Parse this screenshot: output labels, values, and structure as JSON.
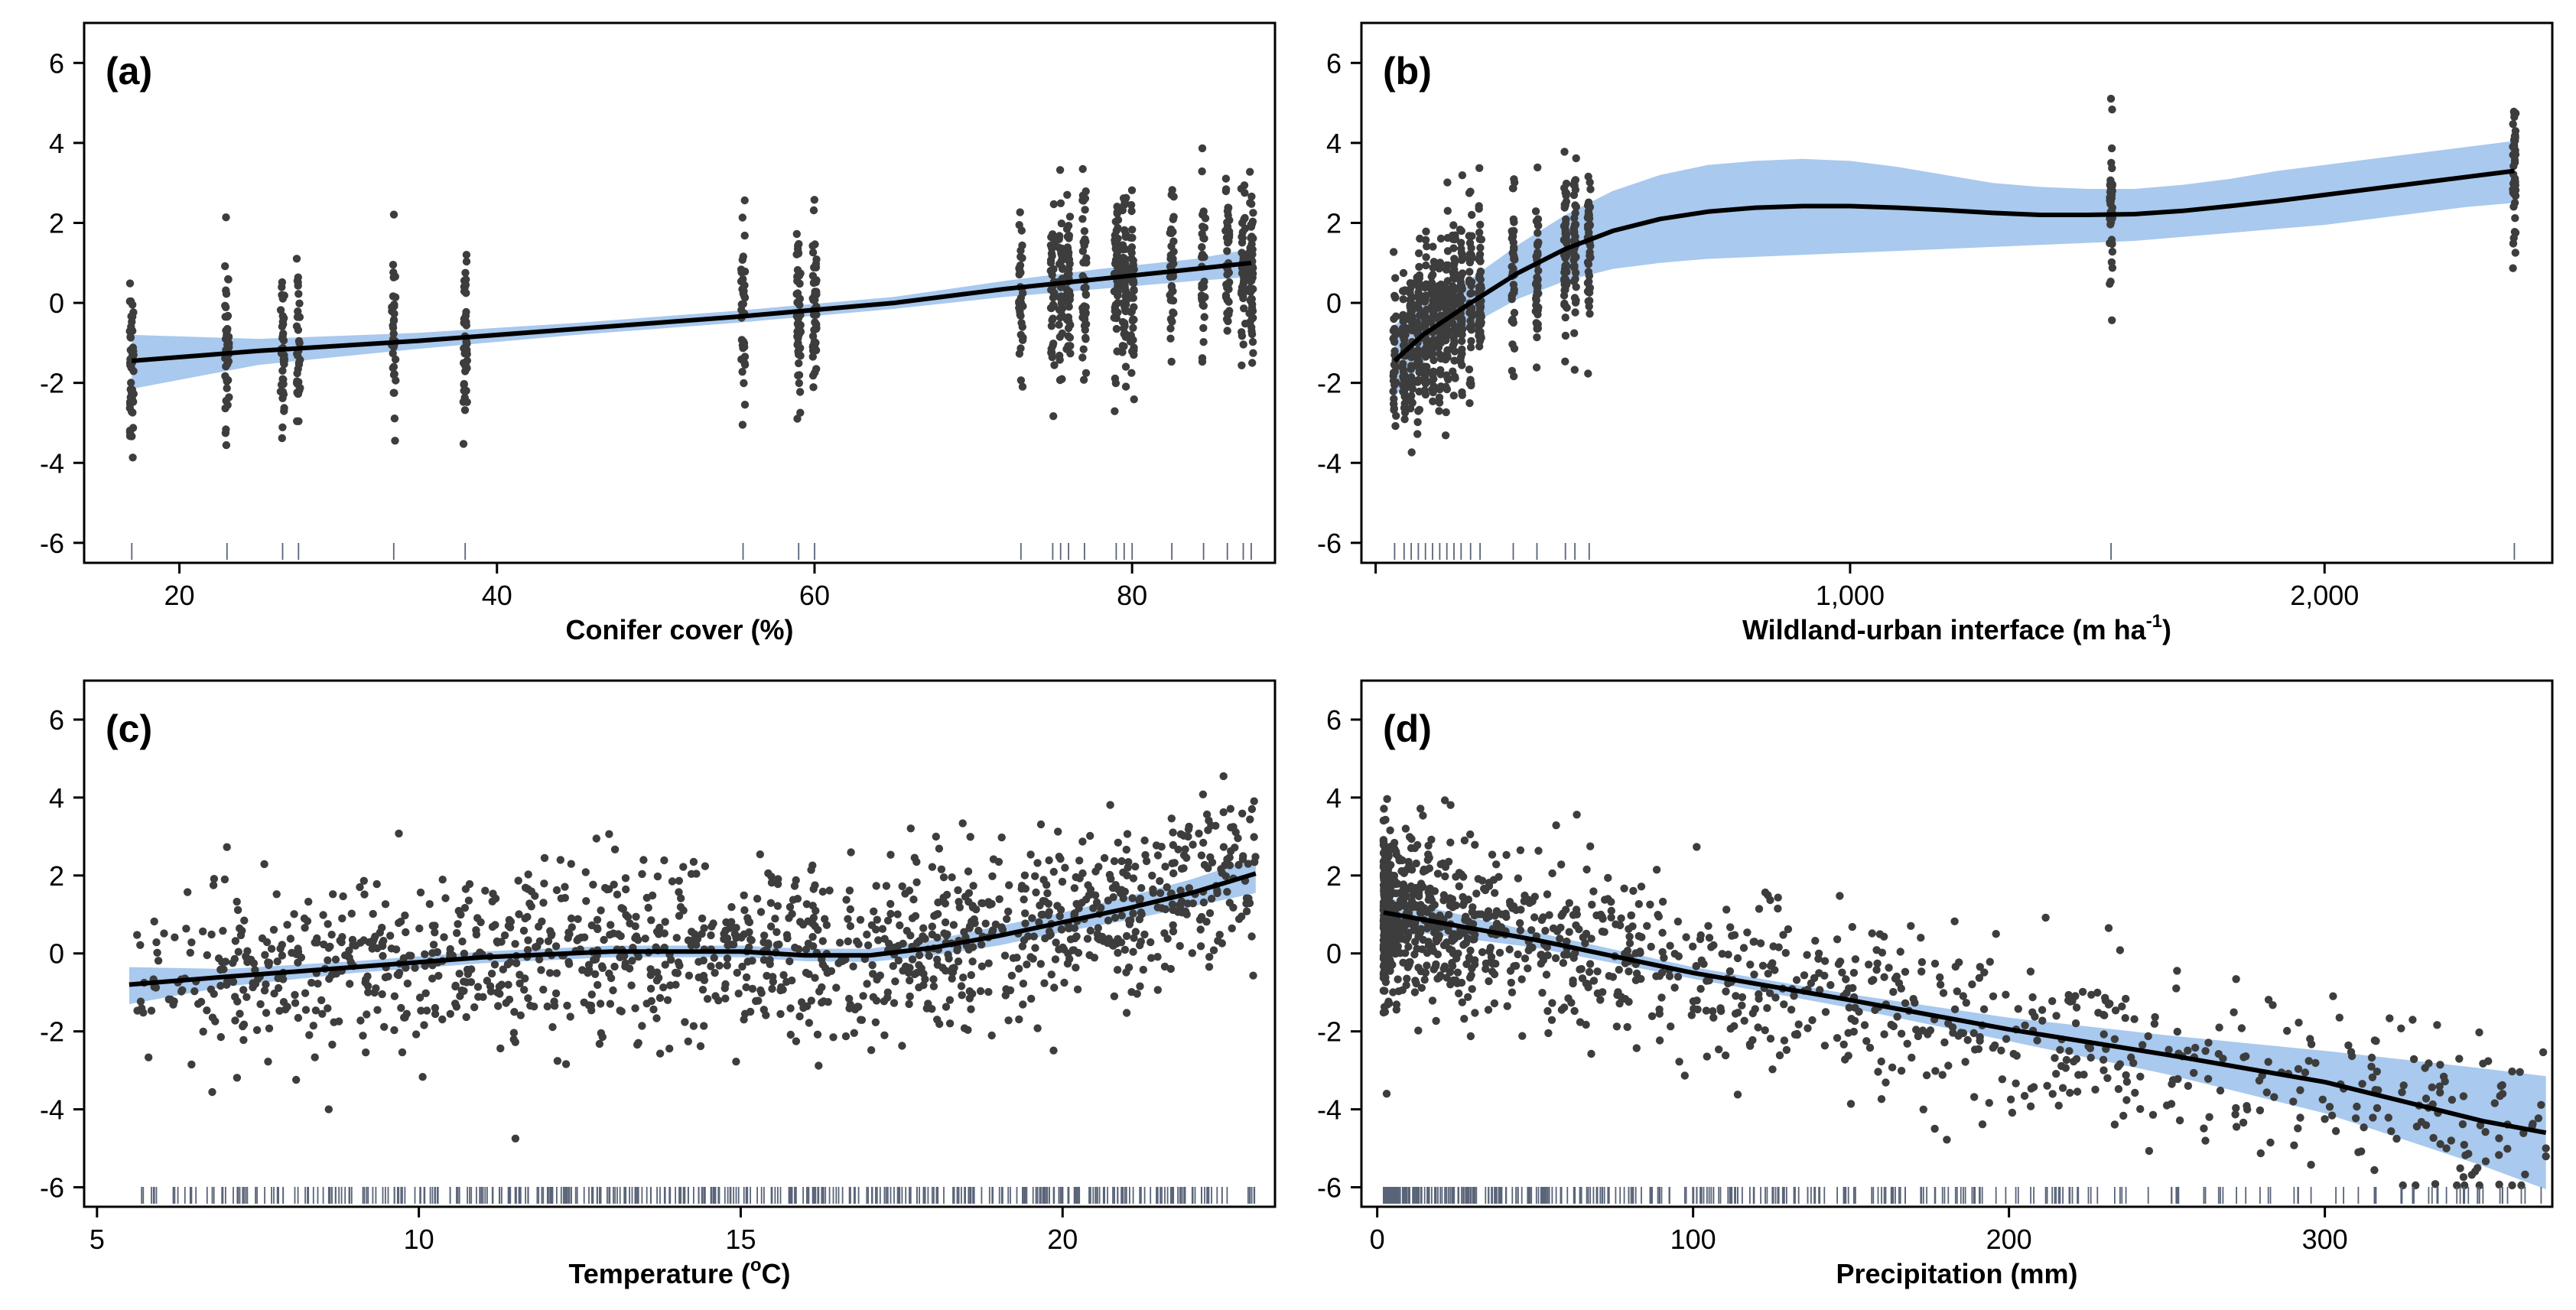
{
  "colors": {
    "band": "#a9c9ee",
    "points": "#3d3d3d",
    "line": "#000000",
    "rug": "#5a6478",
    "frame": "#000000"
  },
  "chart_data": [
    {
      "id": "a",
      "type": "scatter",
      "tag": "(a)",
      "xlabel": "Conifer cover (%)",
      "ylabel": "",
      "xlim": [
        14,
        89
      ],
      "ylim": [
        -6.5,
        7
      ],
      "xticks": [
        20,
        40,
        60,
        80
      ],
      "xtick_labels": [
        "20",
        "40",
        "60",
        "80"
      ],
      "yticks": [
        -6,
        -4,
        -2,
        0,
        2,
        4,
        6
      ],
      "ytick_labels": [
        "-6",
        "-4",
        "-2",
        "0",
        "2",
        "4",
        "6"
      ],
      "x_positions": [
        17,
        23,
        26.5,
        27.5,
        33.5,
        38,
        55.5,
        59,
        60,
        73,
        75,
        75.5,
        76,
        77,
        79,
        79.5,
        80,
        82.5,
        84.5,
        86,
        87,
        87.5
      ],
      "x_spread": 0.25,
      "fit_x": [
        17,
        25,
        35,
        45,
        55,
        65,
        72,
        78,
        84,
        87.5
      ],
      "fit_y": [
        -1.45,
        -1.2,
        -0.95,
        -0.65,
        -0.35,
        0.0,
        0.35,
        0.6,
        0.85,
        1.0
      ],
      "ci_upper": [
        -0.8,
        -0.9,
        -0.75,
        -0.5,
        -0.2,
        0.15,
        0.55,
        0.85,
        1.1,
        1.35
      ],
      "ci_lower": [
        -2.15,
        -1.55,
        -1.15,
        -0.8,
        -0.5,
        -0.15,
        0.15,
        0.35,
        0.55,
        0.65
      ],
      "n_points": 950,
      "noise_sd": 1.1,
      "seed": 11
    },
    {
      "id": "b",
      "type": "scatter",
      "tag": "(b)",
      "xlabel": "Wildland-urban interface (m ha",
      "xlabel_sup": "-1",
      "xlabel_end": ")",
      "ylabel": "",
      "xlim": [
        -30,
        2480
      ],
      "ylim": [
        -6.5,
        7
      ],
      "xticks": [
        0,
        1000,
        2000
      ],
      "xtick_labels": [
        "",
        "1,000",
        "2,000"
      ],
      "yticks": [
        -6,
        -4,
        -2,
        0,
        2,
        4,
        6
      ],
      "ytick_labels": [
        "-6",
        "-4",
        "-2",
        "0",
        "2",
        "4",
        "6"
      ],
      "x_positions": [
        40,
        60,
        75,
        90,
        105,
        120,
        135,
        150,
        165,
        180,
        200,
        220,
        290,
        340,
        400,
        420,
        450,
        1550,
        2400
      ],
      "x_spread": 6,
      "fit_x": [
        40,
        100,
        200,
        300,
        400,
        500,
        600,
        700,
        800,
        900,
        1000,
        1100,
        1200,
        1300,
        1400,
        1500,
        1600,
        1700,
        1800,
        1900,
        2000,
        2100,
        2200,
        2300,
        2400
      ],
      "fit_y": [
        -1.45,
        -0.8,
        0.0,
        0.75,
        1.35,
        1.8,
        2.1,
        2.28,
        2.38,
        2.42,
        2.42,
        2.38,
        2.32,
        2.25,
        2.2,
        2.2,
        2.22,
        2.3,
        2.42,
        2.55,
        2.7,
        2.85,
        3.0,
        3.15,
        3.3
      ],
      "ci_upper": [
        -0.55,
        -0.05,
        0.6,
        1.45,
        2.2,
        2.8,
        3.2,
        3.45,
        3.55,
        3.6,
        3.55,
        3.4,
        3.2,
        3.0,
        2.9,
        2.85,
        2.85,
        2.95,
        3.1,
        3.3,
        3.45,
        3.6,
        3.75,
        3.9,
        4.05
      ],
      "ci_lower": [
        -2.35,
        -1.5,
        -0.55,
        0.1,
        0.55,
        0.85,
        1.0,
        1.1,
        1.15,
        1.2,
        1.25,
        1.3,
        1.35,
        1.4,
        1.45,
        1.5,
        1.55,
        1.65,
        1.75,
        1.85,
        1.95,
        2.1,
        2.25,
        2.4,
        2.5
      ],
      "n_points": 900,
      "noise_sd": 1.05,
      "seed": 23
    },
    {
      "id": "c",
      "type": "scatter",
      "tag": "(c)",
      "xlabel": "Temperature (",
      "xlabel_sup": "o",
      "xlabel_end": "C)",
      "ylabel": "",
      "xlim": [
        4.8,
        23.3
      ],
      "ylim": [
        -6.5,
        7
      ],
      "xticks": [
        5,
        10,
        15,
        20
      ],
      "xtick_labels": [
        "5",
        "10",
        "15",
        "20"
      ],
      "yticks": [
        -6,
        -4,
        -2,
        0,
        2,
        4,
        6
      ],
      "ytick_labels": [
        "-6",
        "-4",
        "-2",
        "0",
        "2",
        "4",
        "6"
      ],
      "x_range": [
        5.5,
        23
      ],
      "fit_x": [
        5.5,
        7,
        9,
        11,
        13,
        15,
        16,
        17,
        18,
        19,
        20,
        21,
        22,
        23
      ],
      "fit_y": [
        -0.8,
        -0.6,
        -0.35,
        -0.1,
        0.05,
        0.05,
        -0.05,
        -0.05,
        0.15,
        0.45,
        0.8,
        1.15,
        1.55,
        2.05
      ],
      "ci_upper": [
        -0.35,
        -0.4,
        -0.2,
        0.05,
        0.2,
        0.2,
        0.12,
        0.12,
        0.35,
        0.7,
        1.05,
        1.45,
        1.9,
        2.45
      ],
      "ci_lower": [
        -1.3,
        -0.85,
        -0.5,
        -0.25,
        -0.1,
        -0.1,
        -0.2,
        -0.22,
        -0.05,
        0.2,
        0.55,
        0.85,
        1.2,
        1.55
      ],
      "n_points": 1300,
      "noise_sd": 1.1,
      "seed": 37,
      "outliers": [
        [
          22.5,
          4.55
        ],
        [
          11.5,
          -4.75
        ],
        [
          8.6,
          -4.0
        ],
        [
          12.2,
          2.4
        ]
      ]
    },
    {
      "id": "d",
      "type": "scatter",
      "tag": "(d)",
      "xlabel": "Precipitation (mm)",
      "ylabel": "",
      "xlim": [
        -5,
        372
      ],
      "ylim": [
        -6.5,
        7
      ],
      "xticks": [
        0,
        100,
        200,
        300
      ],
      "xtick_labels": [
        "0",
        "100",
        "200",
        "300"
      ],
      "yticks": [
        -6,
        -4,
        -2,
        0,
        2,
        4,
        6
      ],
      "ytick_labels": [
        "-6",
        "-4",
        "-2",
        "0",
        "2",
        "4",
        "6"
      ],
      "x_range": [
        2,
        370
      ],
      "fit_x": [
        2,
        50,
        100,
        150,
        200,
        250,
        300,
        350,
        370
      ],
      "fit_y": [
        1.05,
        0.35,
        -0.5,
        -1.2,
        -1.95,
        -2.6,
        -3.3,
        -4.3,
        -4.6
      ],
      "ci_upper": [
        1.45,
        0.55,
        -0.35,
        -1.05,
        -1.65,
        -2.1,
        -2.5,
        -2.95,
        -3.15
      ],
      "ci_lower": [
        0.65,
        0.15,
        -0.65,
        -1.4,
        -2.25,
        -3.1,
        -4.1,
        -5.45,
        -6.05
      ],
      "n_points": 1250,
      "noise_sd": 1.1,
      "seed": 53,
      "outliers": [
        [
          250,
          -3.9
        ],
        [
          290,
          -3.8
        ],
        [
          300,
          -4.25
        ],
        [
          340,
          -4.8
        ],
        [
          370,
          -5.0
        ],
        [
          230,
          -3.0
        ],
        [
          215,
          -1.6
        ],
        [
          195,
          -1.1
        ],
        [
          3,
          -3.6
        ]
      ]
    }
  ]
}
